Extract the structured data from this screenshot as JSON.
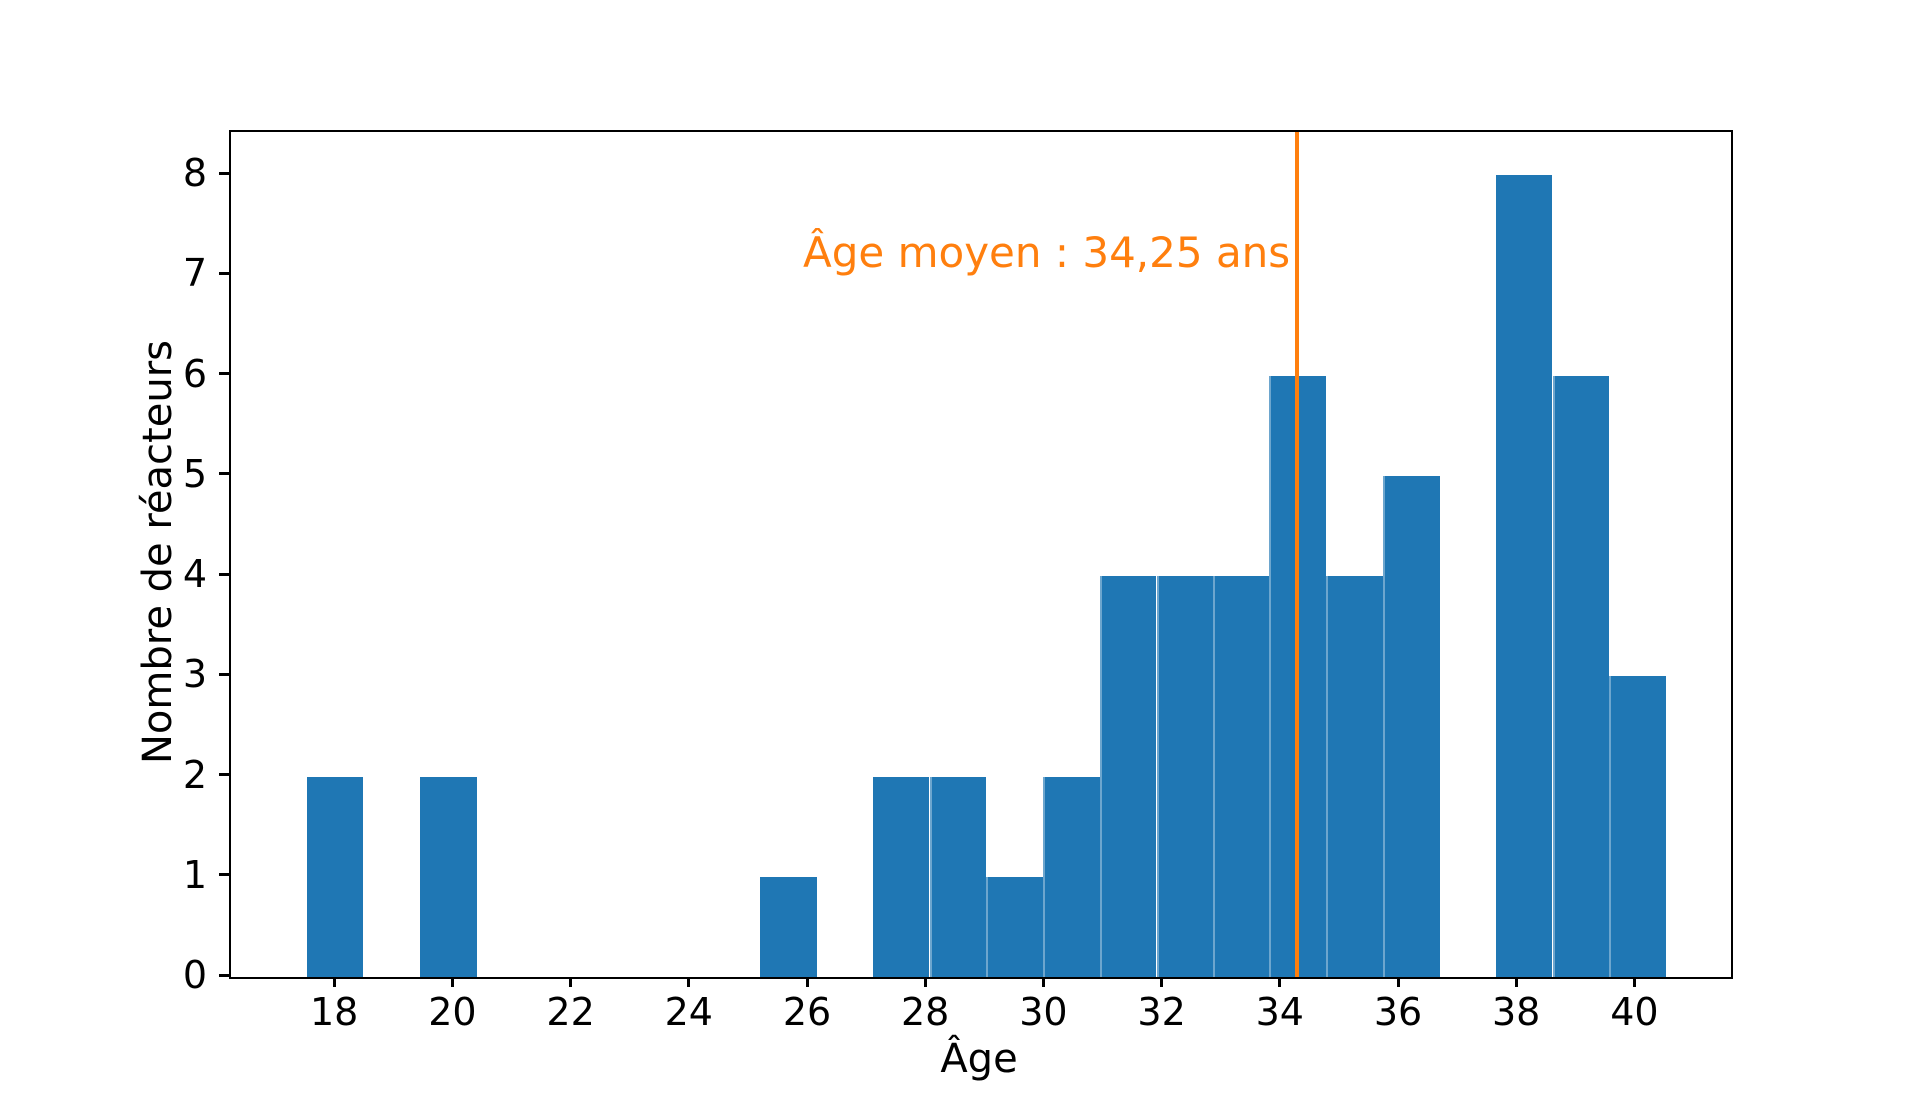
{
  "chart_data": {
    "type": "bar",
    "subtype": "histogram",
    "title": "",
    "xlabel": "Âge",
    "ylabel": "Nombre de réacteurs",
    "xlim": [
      16.22,
      41.6
    ],
    "ylim": [
      0,
      8.43
    ],
    "x_ticks": [
      18,
      20,
      22,
      24,
      26,
      28,
      30,
      32,
      34,
      36,
      38,
      40
    ],
    "y_ticks": [
      0,
      1,
      2,
      3,
      4,
      5,
      6,
      7,
      8
    ],
    "bin_width": 0.958,
    "bar_color": "#1f77b4",
    "bars": [
      {
        "x0": 17.5,
        "x1": 18.46,
        "count": 2
      },
      {
        "x0": 19.42,
        "x1": 20.38,
        "count": 2
      },
      {
        "x0": 25.17,
        "x1": 26.13,
        "count": 1
      },
      {
        "x0": 27.08,
        "x1": 28.04,
        "count": 2
      },
      {
        "x0": 28.04,
        "x1": 29.0,
        "count": 2
      },
      {
        "x0": 29.0,
        "x1": 29.96,
        "count": 1
      },
      {
        "x0": 29.96,
        "x1": 30.92,
        "count": 2
      },
      {
        "x0": 30.92,
        "x1": 31.88,
        "count": 4
      },
      {
        "x0": 31.88,
        "x1": 32.83,
        "count": 4
      },
      {
        "x0": 32.83,
        "x1": 33.79,
        "count": 4
      },
      {
        "x0": 33.79,
        "x1": 34.75,
        "count": 6
      },
      {
        "x0": 34.75,
        "x1": 35.71,
        "count": 4
      },
      {
        "x0": 35.71,
        "x1": 36.67,
        "count": 5
      },
      {
        "x0": 37.63,
        "x1": 38.58,
        "count": 8
      },
      {
        "x0": 38.58,
        "x1": 39.54,
        "count": 6
      },
      {
        "x0": 39.54,
        "x1": 40.5,
        "count": 3
      }
    ],
    "mean_line": {
      "x": 34.25,
      "color": "#ff7f0e"
    },
    "annotation": {
      "text": "Âge moyen : 34,25 ans",
      "color": "#ff7f0e"
    },
    "legend": null,
    "grid": false
  }
}
